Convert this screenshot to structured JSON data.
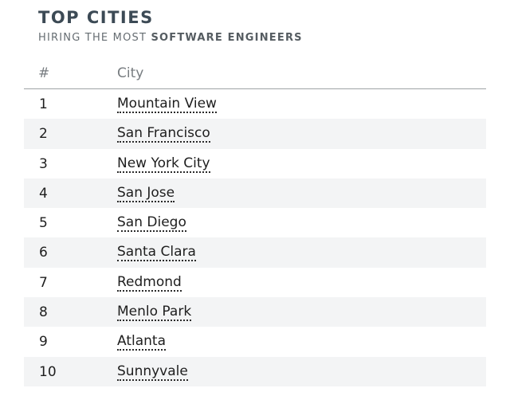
{
  "header": {
    "title": "TOP CITIES",
    "subtitle_prefix": "HIRING THE MOST ",
    "subtitle_strong": "SOFTWARE ENGINEERS"
  },
  "table": {
    "columns": {
      "rank": "#",
      "city": "City"
    },
    "rows": [
      {
        "rank": "1",
        "city": "Mountain View"
      },
      {
        "rank": "2",
        "city": "San Francisco"
      },
      {
        "rank": "3",
        "city": "New York City"
      },
      {
        "rank": "4",
        "city": "San Jose"
      },
      {
        "rank": "5",
        "city": "San Diego"
      },
      {
        "rank": "6",
        "city": "Santa Clara"
      },
      {
        "rank": "7",
        "city": "Redmond"
      },
      {
        "rank": "8",
        "city": "Menlo Park"
      },
      {
        "rank": "9",
        "city": "Atlanta"
      },
      {
        "rank": "10",
        "city": "Sunnyvale"
      }
    ]
  }
}
